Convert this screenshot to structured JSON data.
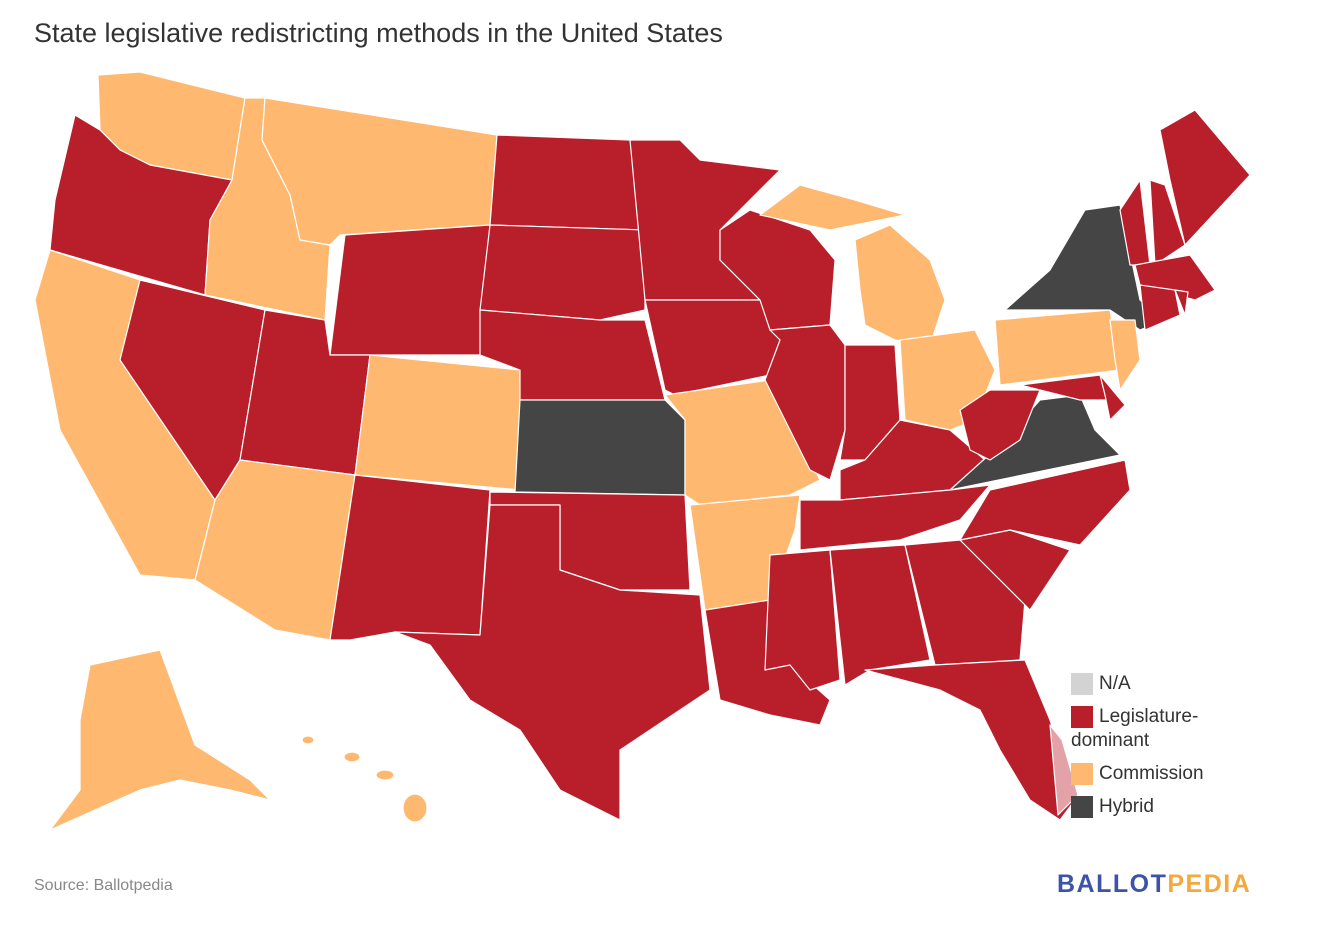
{
  "title": "State legislative redistricting methods in the United States",
  "source": "Source: Ballotpedia",
  "logo": {
    "part1": "BALLOT",
    "part2": "PEDIA"
  },
  "colors": {
    "na": "#d3d3d3",
    "legislature": "#b91e2b",
    "commission": "#ffb870",
    "hybrid": "#454545",
    "na_highlight": "#e3a1a8"
  },
  "legend": [
    {
      "key": "na",
      "label": "N/A"
    },
    {
      "key": "legislature",
      "label": "Legislature-dominant"
    },
    {
      "key": "commission",
      "label": "Commission"
    },
    {
      "key": "hybrid",
      "label": "Hybrid"
    }
  ],
  "state_methods": {
    "WA": "commission",
    "OR": "legislature",
    "CA": "commission",
    "NV": "legislature",
    "ID": "commission",
    "MT": "commission",
    "WY": "legislature",
    "UT": "legislature",
    "AZ": "commission",
    "CO": "commission",
    "NM": "legislature",
    "ND": "legislature",
    "SD": "legislature",
    "NE": "legislature",
    "KS": "hybrid",
    "OK": "legislature",
    "TX": "legislature",
    "MN": "legislature",
    "IA": "legislature",
    "MO": "commission",
    "AR": "commission",
    "LA": "legislature",
    "WI": "legislature",
    "IL": "legislature",
    "MI": "commission",
    "IN": "legislature",
    "OH": "commission",
    "KY": "legislature",
    "TN": "legislature",
    "MS": "legislature",
    "AL": "legislature",
    "GA": "legislature",
    "FL": "legislature",
    "SC": "legislature",
    "NC": "legislature",
    "VA": "hybrid",
    "WV": "legislature",
    "PA": "commission",
    "NY": "hybrid",
    "NJ": "commission",
    "MD": "legislature",
    "DE": "legislature",
    "VT": "legislature",
    "NH": "legislature",
    "ME": "legislature",
    "MA": "legislature",
    "CT": "legislature",
    "RI": "legislature",
    "AK": "commission",
    "HI": "commission"
  }
}
